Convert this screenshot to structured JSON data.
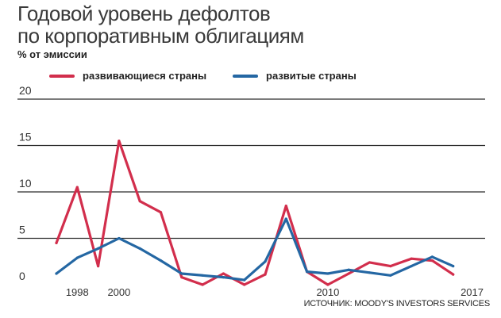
{
  "header": {
    "title_line1": "Годовой уровень дефолтов",
    "title_line2": "по корпоративным облигациям",
    "subtitle": "% от эмиссии"
  },
  "source": "ИСТОЧНИК: MOODY'S INVESTORS SERVICES",
  "chart_data": {
    "type": "line",
    "title": "Годовой уровень дефолтов по корпоративным облигациям",
    "ylabel": "% от эмиссии",
    "xlabel": "",
    "ylim": [
      0,
      20
    ],
    "yticks": [
      0,
      5,
      10,
      15,
      20
    ],
    "x": [
      1997,
      1998,
      1999,
      2000,
      2001,
      2002,
      2003,
      2004,
      2005,
      2006,
      2007,
      2008,
      2009,
      2010,
      2011,
      2012,
      2013,
      2014,
      2015,
      2016,
      2017
    ],
    "xtick_labels": [
      {
        "x": 1998,
        "label": "1998"
      },
      {
        "x": 2000,
        "label": "2000"
      },
      {
        "x": 2010,
        "label": "2010"
      },
      {
        "x": 2017,
        "label": "2017"
      }
    ],
    "series": [
      {
        "name": "развивающиеся страны",
        "color": "#d22e4c",
        "values": [
          4.5,
          10.5,
          2.0,
          15.5,
          9.0,
          7.8,
          0.8,
          0.0,
          1.2,
          0.0,
          1.1,
          8.5,
          1.4,
          0.0,
          1.2,
          2.4,
          2.0,
          2.8,
          2.6,
          1.1,
          null
        ]
      },
      {
        "name": "развитые страны",
        "color": "#2467a3",
        "values": [
          1.2,
          2.9,
          3.9,
          5.0,
          3.9,
          2.6,
          1.2,
          1.0,
          0.8,
          0.5,
          2.5,
          7.1,
          1.4,
          1.2,
          1.6,
          1.3,
          1.0,
          2.0,
          3.0,
          2.0,
          null
        ]
      }
    ]
  }
}
